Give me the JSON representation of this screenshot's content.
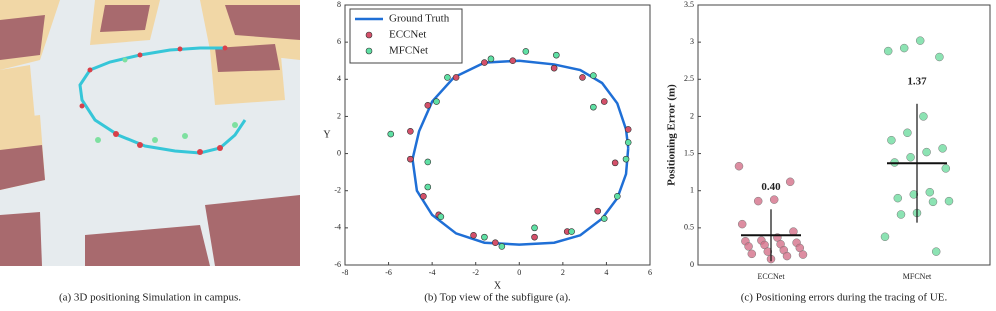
{
  "figure_a": {
    "caption": "(a) 3D positioning Simulation in campus."
  },
  "chart_data": [
    {
      "type": "scatter",
      "caption": "(b) Top view of the subfigure (a).",
      "xlabel": "X",
      "ylabel": "Y",
      "xlim": [
        -8,
        6
      ],
      "ylim": [
        -6,
        8
      ],
      "xticks": [
        -8,
        -6,
        -4,
        -2,
        0,
        2,
        4,
        6
      ],
      "yticks": [
        -6,
        -4,
        -2,
        0,
        2,
        4,
        6,
        8
      ],
      "series": [
        {
          "name": "Ground Truth",
          "kind": "line",
          "color": "#1f6fd6",
          "x": [
            5,
            4.9,
            4.5,
            3.8,
            2.8,
            1.6,
            0,
            -1.6,
            -3,
            -4,
            -4.6,
            -4.9,
            -4.7,
            -4,
            -2.9,
            -1.6,
            0,
            1.6,
            2.8,
            3.8,
            4.5,
            4.9,
            5
          ],
          "values": [
            0.3,
            1.3,
            2.7,
            3.8,
            4.5,
            4.8,
            5,
            4.9,
            4.1,
            2.8,
            1.2,
            -0.3,
            -2,
            -3.3,
            -4.3,
            -4.8,
            -4.9,
            -4.8,
            -4.4,
            -3.5,
            -2.4,
            -1.1,
            0.3
          ]
        },
        {
          "name": "ECCNet",
          "kind": "points",
          "color": "#d4506a",
          "x": [
            -1.6,
            -0.3,
            -2.9,
            -4.2,
            -5.0,
            -5.0,
            -4.4,
            -3.7,
            -2.1,
            -1.1,
            0.7,
            2.2,
            3.6,
            4.4,
            5.0,
            3.9,
            2.9,
            1.6
          ],
          "values": [
            4.9,
            5.0,
            4.1,
            2.6,
            1.2,
            -0.3,
            -2.3,
            -3.3,
            -4.4,
            -4.8,
            -4.5,
            -4.2,
            -3.1,
            -0.5,
            1.3,
            2.8,
            4.1,
            4.6
          ]
        },
        {
          "name": "MFCNet",
          "kind": "points",
          "color": "#5fe0a4",
          "x": [
            -5.9,
            -3.8,
            -3.3,
            -1.3,
            0.3,
            1.7,
            3.4,
            3.4,
            5.0,
            4.9,
            4.5,
            3.9,
            2.4,
            0.7,
            -0.8,
            -1.6,
            -3.6,
            -4.2,
            -4.2
          ],
          "values": [
            1.05,
            2.8,
            4.1,
            5.1,
            5.5,
            5.3,
            4.2,
            2.5,
            0.6,
            -0.3,
            -2.3,
            -3.5,
            -4.2,
            -4.0,
            -5.0,
            -4.5,
            -3.4,
            -1.8,
            -0.45
          ]
        }
      ]
    },
    {
      "type": "strip",
      "caption": "(c) Positioning errors during the tracing of UE.",
      "ylabel": "Positioning Error (m)",
      "ylim": [
        0,
        3.5
      ],
      "yticks": [
        0,
        0.5,
        1,
        1.5,
        2,
        2.5,
        3,
        3.5
      ],
      "categories": [
        "ECCNet",
        "MFCNet"
      ],
      "colors": [
        "#d4708a",
        "#6fdca0"
      ],
      "points": [
        [
          1.33,
          1.12,
          0.88,
          0.86,
          0.55,
          0.45,
          0.37,
          0.33,
          0.32,
          0.3,
          0.28,
          0.27,
          0.25,
          0.23,
          0.2,
          0.18,
          0.15,
          0.14,
          0.12,
          0.08
        ],
        [
          3.02,
          2.92,
          2.88,
          2.8,
          2.0,
          1.78,
          1.68,
          1.57,
          1.52,
          1.45,
          1.38,
          1.3,
          0.98,
          0.95,
          0.9,
          0.86,
          0.85,
          0.7,
          0.68,
          0.38,
          0.18
        ]
      ],
      "means": [
        0.4,
        1.37
      ],
      "value_labels": [
        "0.40",
        "1.37"
      ],
      "errors": [
        0.35,
        0.8
      ]
    }
  ]
}
